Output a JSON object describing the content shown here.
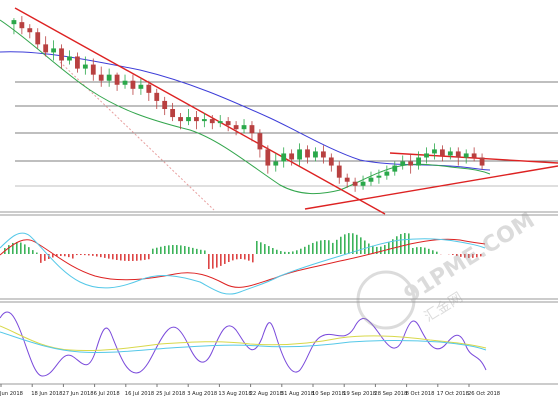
{
  "chart_data": {
    "type": "candlestick",
    "x_ticks": [
      "Jun 2018",
      "18 Jun 2018",
      "27 Jun 2018",
      "6 Jul 2018",
      "16 Jul 2018",
      "25 Jul 2018",
      "3 Aug 2018",
      "13 Aug 2018",
      "22 Aug 2018",
      "31 Aug 2018",
      "10 Sep 2018",
      "19 Sep 2018",
      "28 Sep 2018",
      "8 Oct 2018",
      "17 Oct 2018",
      "26 Oct 2018"
    ],
    "panels": [
      "price",
      "macd",
      "oscillator"
    ],
    "price_candles": [
      [
        0.08,
        0.06,
        0.05,
        0.13
      ],
      [
        0.07,
        0.1,
        0.04,
        0.13
      ],
      [
        0.1,
        0.12,
        0.08,
        0.15
      ],
      [
        0.12,
        0.18,
        0.1,
        0.2
      ],
      [
        0.18,
        0.22,
        0.14,
        0.24
      ],
      [
        0.22,
        0.2,
        0.16,
        0.26
      ],
      [
        0.2,
        0.26,
        0.18,
        0.3
      ],
      [
        0.26,
        0.24,
        0.21,
        0.28
      ],
      [
        0.24,
        0.3,
        0.22,
        0.32
      ],
      [
        0.3,
        0.28,
        0.24,
        0.33
      ],
      [
        0.28,
        0.33,
        0.25,
        0.36
      ],
      [
        0.33,
        0.36,
        0.29,
        0.39
      ],
      [
        0.36,
        0.33,
        0.3,
        0.39
      ],
      [
        0.33,
        0.38,
        0.32,
        0.41
      ],
      [
        0.38,
        0.36,
        0.33,
        0.4
      ],
      [
        0.36,
        0.4,
        0.33,
        0.43
      ],
      [
        0.4,
        0.38,
        0.35,
        0.43
      ],
      [
        0.38,
        0.42,
        0.36,
        0.46
      ],
      [
        0.42,
        0.46,
        0.4,
        0.5
      ],
      [
        0.46,
        0.5,
        0.44,
        0.53
      ],
      [
        0.5,
        0.54,
        0.47,
        0.56
      ],
      [
        0.54,
        0.56,
        0.52,
        0.6
      ],
      [
        0.56,
        0.54,
        0.5,
        0.58
      ],
      [
        0.54,
        0.56,
        0.51,
        0.6
      ],
      [
        0.56,
        0.55,
        0.52,
        0.59
      ],
      [
        0.55,
        0.57,
        0.53,
        0.6
      ],
      [
        0.57,
        0.56,
        0.53,
        0.59
      ],
      [
        0.56,
        0.58,
        0.54,
        0.61
      ],
      [
        0.58,
        0.6,
        0.56,
        0.63
      ],
      [
        0.6,
        0.58,
        0.55,
        0.62
      ],
      [
        0.58,
        0.62,
        0.56,
        0.66
      ],
      [
        0.62,
        0.7,
        0.6,
        0.74
      ],
      [
        0.7,
        0.78,
        0.68,
        0.82
      ],
      [
        0.78,
        0.76,
        0.72,
        0.81
      ],
      [
        0.76,
        0.72,
        0.69,
        0.79
      ],
      [
        0.72,
        0.75,
        0.7,
        0.78
      ],
      [
        0.75,
        0.7,
        0.67,
        0.78
      ],
      [
        0.7,
        0.74,
        0.68,
        0.77
      ],
      [
        0.74,
        0.71,
        0.69,
        0.76
      ],
      [
        0.71,
        0.74,
        0.68,
        0.77
      ],
      [
        0.74,
        0.78,
        0.72,
        0.81
      ],
      [
        0.78,
        0.84,
        0.76,
        0.87
      ],
      [
        0.84,
        0.86,
        0.82,
        0.89
      ],
      [
        0.86,
        0.88,
        0.84,
        0.91
      ],
      [
        0.88,
        0.86,
        0.83,
        0.9
      ],
      [
        0.86,
        0.84,
        0.81,
        0.88
      ],
      [
        0.84,
        0.83,
        0.8,
        0.87
      ],
      [
        0.83,
        0.81,
        0.78,
        0.85
      ],
      [
        0.81,
        0.78,
        0.76,
        0.83
      ],
      [
        0.78,
        0.76,
        0.73,
        0.8
      ],
      [
        0.76,
        0.78,
        0.72,
        0.82
      ],
      [
        0.78,
        0.74,
        0.71,
        0.8
      ],
      [
        0.74,
        0.72,
        0.69,
        0.77
      ],
      [
        0.72,
        0.7,
        0.67,
        0.75
      ],
      [
        0.7,
        0.73,
        0.68,
        0.76
      ],
      [
        0.73,
        0.71,
        0.69,
        0.75
      ],
      [
        0.71,
        0.74,
        0.69,
        0.78
      ],
      [
        0.74,
        0.72,
        0.7,
        0.77
      ],
      [
        0.72,
        0.74,
        0.69,
        0.76
      ],
      [
        0.74,
        0.78,
        0.72,
        0.8
      ]
    ],
    "overlays": [
      "moving average (green)",
      "moving average (blue)",
      "trendlines (red)",
      "dotted line (pink)",
      "horizontal levels (gray)"
    ],
    "watermark": {
      "brand": "91PME.COM",
      "subtitle": "汇金网"
    }
  }
}
